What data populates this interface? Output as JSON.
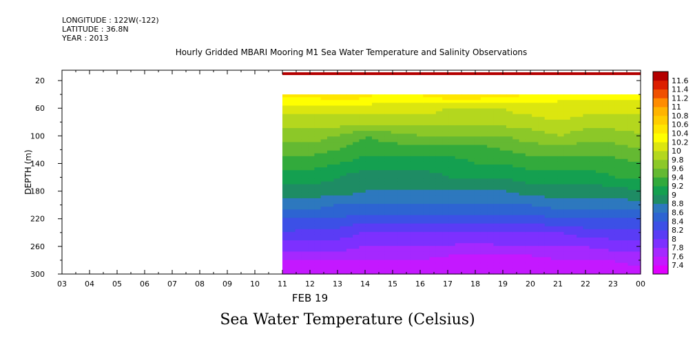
{
  "header": {
    "longitude": "LONGITUDE : 122W(-122)",
    "latitude": "LATITUDE : 36.8N",
    "year": "YEAR : 2013"
  },
  "title": "Hourly Gridded MBARI Mooring M1 Sea Water Temperature and Salinity Observations",
  "bottom_title": "Sea Water Temperature (Celsius)",
  "chart_data": {
    "type": "heatmap",
    "title": "Hourly Gridded MBARI Mooring M1 Sea Water Temperature and Salinity Observations",
    "variable": "Sea Water Temperature (Celsius)",
    "xlabel": "FEB 19",
    "ylabel": "DEPTH (m)",
    "x_ticks": [
      "03",
      "04",
      "05",
      "06",
      "07",
      "08",
      "09",
      "10",
      "11",
      "12",
      "13",
      "14",
      "15",
      "16",
      "17",
      "18",
      "19",
      "20",
      "21",
      "22",
      "23",
      "00"
    ],
    "x_range_hours": [
      3,
      24
    ],
    "y_ticks": [
      20,
      60,
      100,
      140,
      180,
      220,
      260,
      300
    ],
    "ylim": [
      300,
      5
    ],
    "y_reversed": true,
    "colorbar_levels": [
      7.4,
      7.6,
      7.8,
      8,
      8.2,
      8.4,
      8.6,
      8.8,
      9,
      9.2,
      9.4,
      9.6,
      9.8,
      10,
      10.2,
      10.4,
      10.6,
      10.8,
      11,
      11.2,
      11.4,
      11.6
    ],
    "colorbar_labels": [
      "7.4",
      "7.6",
      "7.8",
      "8",
      "8.2",
      "8.4",
      "8.6",
      "8.8",
      "9",
      "9.2",
      "9.4",
      "9.6",
      "9.8",
      "10",
      "10.2",
      "10.4",
      "10.6",
      "10.8",
      "11",
      "11.2",
      "11.4",
      "11.6"
    ],
    "colorbar_colors": [
      "#e000ff",
      "#c418ff",
      "#a528ff",
      "#7d30ff",
      "#5a3cf5",
      "#3c50e6",
      "#2d64d2",
      "#2d78be",
      "#1e8c64",
      "#14a050",
      "#32aa3c",
      "#64b932",
      "#8cc828",
      "#b4d71e",
      "#dce60f",
      "#ffff00",
      "#ffe600",
      "#ffcd00",
      "#ffb400",
      "#ff8c00",
      "#f05000",
      "#dc1e00",
      "#b40000"
    ],
    "data_start_hour": 11,
    "data_end_hour": 24,
    "gap_depth_range": [
      12,
      40
    ],
    "surface_value_range": [
      11.4,
      11.6
    ],
    "x_hours": [
      11,
      12,
      13,
      14,
      15,
      16,
      17,
      18,
      19,
      20,
      21,
      22,
      23,
      24
    ],
    "depths": [
      10,
      40,
      60,
      80,
      100,
      120,
      140,
      160,
      180,
      200,
      220,
      240,
      260,
      280,
      300
    ],
    "values": [
      [
        11.5,
        11.5,
        11.5,
        11.5,
        11.5,
        11.5,
        11.5,
        11.5,
        11.5,
        11.5,
        11.5,
        11.5,
        11.5,
        11.5
      ],
      [
        10.5,
        10.5,
        10.6,
        10.5,
        10.3,
        10.4,
        10.6,
        10.6,
        10.5,
        10.4,
        10.3,
        10.3,
        10.3,
        10.3
      ],
      [
        10.1,
        10.1,
        10.1,
        10.1,
        10.1,
        10.1,
        10.0,
        10.0,
        10.0,
        10.1,
        10.1,
        10.1,
        10.1,
        10.1
      ],
      [
        9.9,
        9.9,
        9.9,
        9.9,
        9.9,
        9.9,
        9.9,
        9.9,
        9.9,
        9.9,
        10.0,
        9.9,
        9.9,
        9.9
      ],
      [
        9.7,
        9.7,
        9.6,
        9.4,
        9.5,
        9.6,
        9.6,
        9.6,
        9.6,
        9.7,
        9.8,
        9.7,
        9.7,
        9.8
      ],
      [
        9.5,
        9.5,
        9.4,
        9.3,
        9.3,
        9.3,
        9.3,
        9.3,
        9.4,
        9.5,
        9.5,
        9.5,
        9.5,
        9.6
      ],
      [
        9.3,
        9.3,
        9.2,
        9.1,
        9.1,
        9.1,
        9.1,
        9.2,
        9.2,
        9.3,
        9.3,
        9.3,
        9.3,
        9.4
      ],
      [
        9.1,
        9.1,
        9.0,
        8.9,
        8.9,
        8.9,
        9.0,
        9.0,
        9.0,
        9.1,
        9.1,
        9.1,
        9.2,
        9.2
      ],
      [
        8.9,
        8.9,
        8.9,
        8.8,
        8.8,
        8.8,
        8.8,
        8.8,
        8.8,
        8.9,
        8.9,
        8.9,
        8.9,
        9.0
      ],
      [
        8.7,
        8.7,
        8.6,
        8.6,
        8.6,
        8.6,
        8.6,
        8.6,
        8.6,
        8.6,
        8.7,
        8.7,
        8.7,
        8.7
      ],
      [
        8.4,
        8.4,
        8.4,
        8.3,
        8.3,
        8.3,
        8.3,
        8.3,
        8.3,
        8.3,
        8.4,
        8.4,
        8.4,
        8.4
      ],
      [
        8.2,
        8.1,
        8.1,
        8.0,
        8.0,
        8.0,
        8.0,
        8.0,
        8.0,
        8.0,
        8.0,
        8.1,
        8.1,
        8.1
      ],
      [
        7.9,
        7.9,
        7.9,
        7.8,
        7.8,
        7.8,
        7.8,
        7.7,
        7.8,
        7.8,
        7.8,
        7.8,
        7.9,
        7.9
      ],
      [
        7.6,
        7.6,
        7.6,
        7.6,
        7.6,
        7.6,
        7.5,
        7.5,
        7.5,
        7.5,
        7.6,
        7.6,
        7.6,
        7.7
      ],
      [
        7.4,
        7.4,
        7.4,
        7.4,
        7.4,
        7.4,
        7.4,
        7.4,
        7.4,
        7.4,
        7.4,
        7.4,
        7.4,
        7.5
      ]
    ]
  }
}
